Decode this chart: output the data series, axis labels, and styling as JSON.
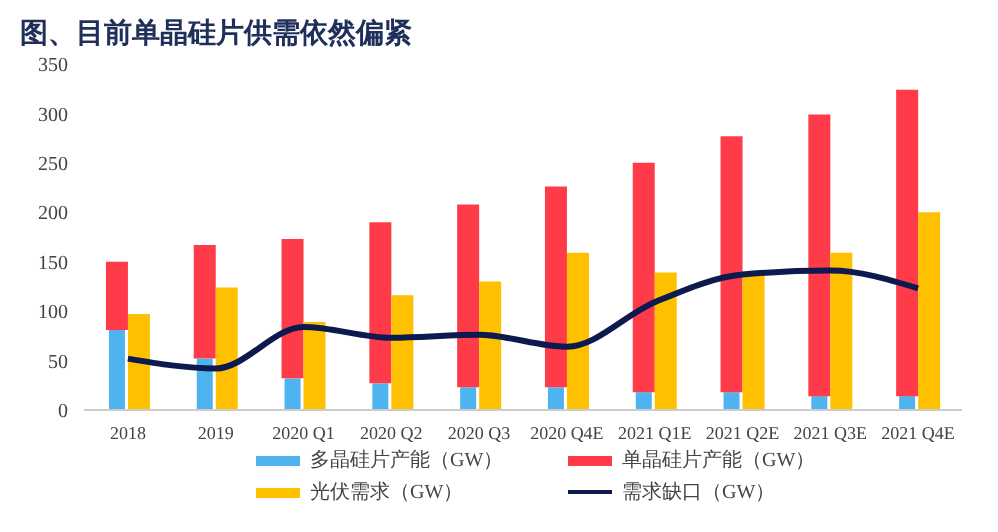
{
  "chart_data": {
    "type": "bar",
    "title": "图、目前单晶硅片供需依然偏紧",
    "categories": [
      "2018",
      "2019",
      "2020 Q1",
      "2020 Q2",
      "2020 Q3",
      "2020 Q4E",
      "2021 Q1E",
      "2021 Q2E",
      "2021 Q3E",
      "2021 Q4E"
    ],
    "series": [
      {
        "name": "多晶硅片产能（GW）",
        "color": "#4fb3f0",
        "values": [
          81,
          52,
          32,
          27,
          23,
          23,
          18,
          18,
          14,
          14
        ]
      },
      {
        "name": "单晶硅片产能（GW）",
        "color": "#ff3b4a",
        "base": [
          81,
          52,
          32,
          27,
          23,
          23,
          18,
          18,
          14,
          14
        ],
        "values": [
          69,
          115,
          141,
          163,
          185,
          203,
          232,
          259,
          285,
          310
        ]
      },
      {
        "name": "光伏需求（GW）",
        "color": "#ffc000",
        "values": [
          97,
          124,
          89,
          116,
          130,
          159,
          139,
          137,
          159,
          200
        ]
      },
      {
        "name": "需求缺口（GW）",
        "type": "line",
        "color": "#0d1a4f",
        "marker": "none",
        "values": [
          52,
          42,
          84,
          73,
          76,
          64,
          109,
          137,
          141,
          123
        ]
      }
    ],
    "ylim": [
      0,
      350
    ],
    "yticks": [
      0,
      50,
      100,
      150,
      200,
      250,
      300,
      350
    ],
    "grid": false,
    "legend": "bottom"
  }
}
